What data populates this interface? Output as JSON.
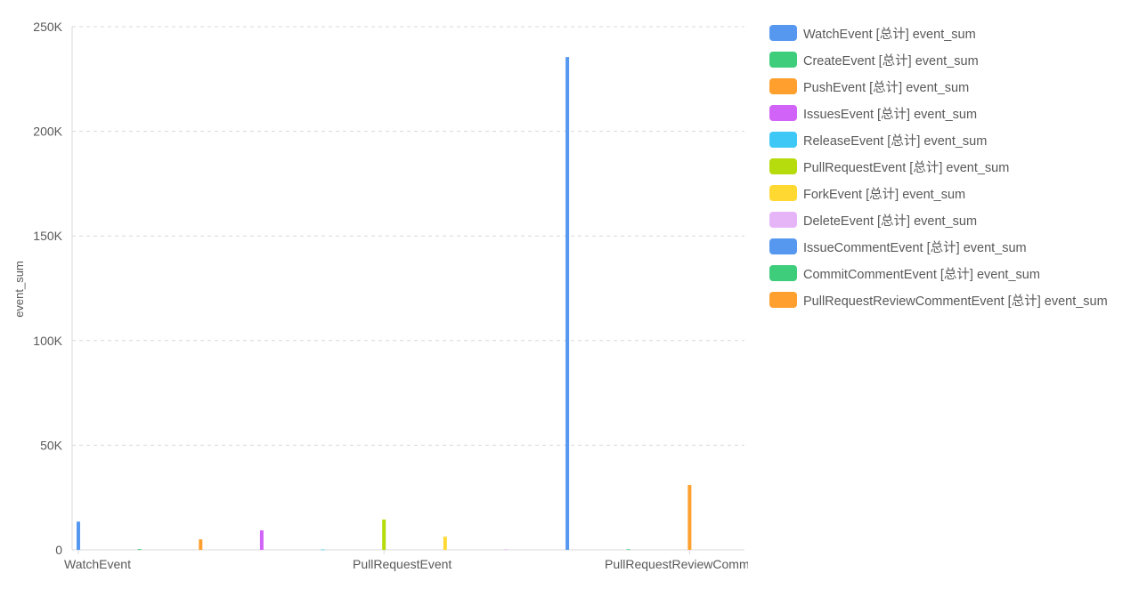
{
  "chart_data": {
    "type": "bar",
    "ylabel": "event_sum",
    "xlabel": "",
    "ylim": [
      0,
      250000
    ],
    "yticks": [
      0,
      50000,
      100000,
      150000,
      200000,
      250000
    ],
    "ytick_labels": [
      "0",
      "50K",
      "100K",
      "150K",
      "200K",
      "250K"
    ],
    "x_tick_labels": [
      "WatchEvent",
      "PullRequestEvent",
      "PullRequestReviewCommentEvent"
    ],
    "grid": true,
    "legend_position": "right",
    "categories": [
      "WatchEvent",
      "CreateEvent",
      "PushEvent",
      "IssuesEvent",
      "ReleaseEvent",
      "PullRequestEvent",
      "ForkEvent",
      "DeleteEvent",
      "IssueCommentEvent",
      "CommitCommentEvent",
      "PullRequestReviewCommentEvent"
    ],
    "series": [
      {
        "name": "WatchEvent [总计] event_sum",
        "color": "#5698f0",
        "values": [
          13500,
          0,
          0,
          0,
          0,
          0,
          0,
          0,
          0,
          0,
          0
        ]
      },
      {
        "name": "CreateEvent [总计] event_sum",
        "color": "#3dcd7b",
        "values": [
          0,
          400,
          0,
          0,
          0,
          0,
          0,
          0,
          0,
          0,
          0
        ]
      },
      {
        "name": "PushEvent [总计] event_sum",
        "color": "#ff9f2e",
        "values": [
          0,
          0,
          5000,
          0,
          0,
          0,
          0,
          0,
          0,
          0,
          0
        ]
      },
      {
        "name": "IssuesEvent [总计] event_sum",
        "color": "#d263f8",
        "values": [
          0,
          0,
          0,
          9300,
          0,
          0,
          0,
          0,
          0,
          0,
          0
        ]
      },
      {
        "name": "ReleaseEvent [总计] event_sum",
        "color": "#3dc8f5",
        "values": [
          0,
          0,
          0,
          0,
          200,
          0,
          0,
          0,
          0,
          0,
          0
        ]
      },
      {
        "name": "PullRequestEvent [总计] event_sum",
        "color": "#b6dc0d",
        "values": [
          0,
          0,
          0,
          0,
          0,
          14500,
          0,
          0,
          0,
          0,
          0
        ]
      },
      {
        "name": "ForkEvent [总计] event_sum",
        "color": "#ffd932",
        "values": [
          0,
          0,
          0,
          0,
          0,
          0,
          6300,
          0,
          0,
          0,
          0
        ]
      },
      {
        "name": "DeleteEvent [总计] event_sum",
        "color": "#e6b5f8",
        "values": [
          0,
          0,
          0,
          0,
          0,
          0,
          0,
          300,
          0,
          0,
          0
        ]
      },
      {
        "name": "IssueCommentEvent [总计] event_sum",
        "color": "#5698f0",
        "values": [
          0,
          0,
          0,
          0,
          0,
          0,
          0,
          0,
          235500,
          0,
          0
        ]
      },
      {
        "name": "CommitCommentEvent [总计] event_sum",
        "color": "#3dcd7b",
        "values": [
          0,
          0,
          0,
          0,
          0,
          0,
          0,
          0,
          0,
          300,
          0
        ]
      },
      {
        "name": "PullRequestReviewCommentEvent [总计] event_sum",
        "color": "#ff9f2e",
        "values": [
          0,
          0,
          0,
          0,
          0,
          0,
          0,
          0,
          0,
          0,
          31000
        ]
      }
    ]
  }
}
